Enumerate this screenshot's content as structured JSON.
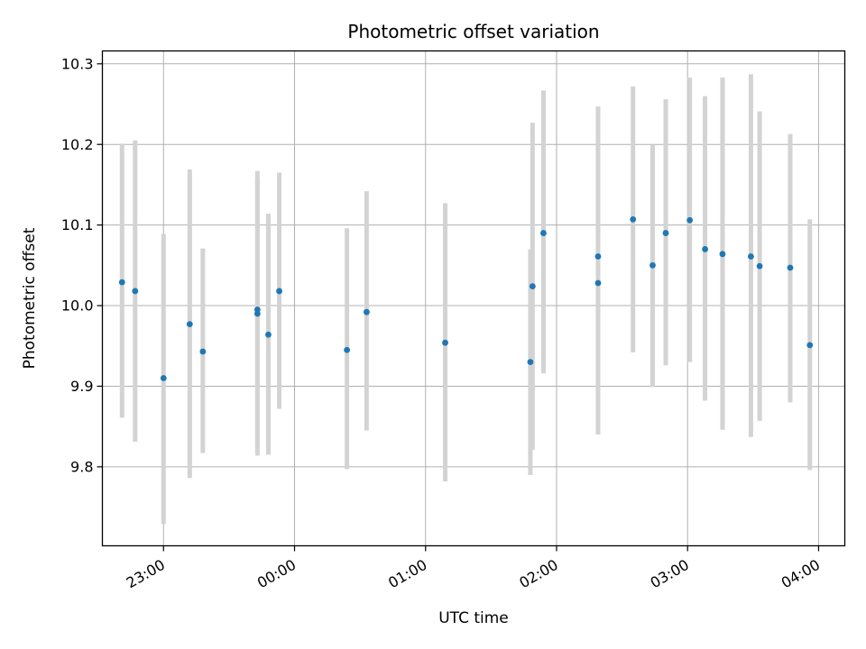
{
  "chart_data": {
    "type": "scatter",
    "title": "Photometric offset variation",
    "xlabel": "UTC time",
    "ylabel": "Photometric offset",
    "x_tick_labels": [
      "23:00",
      "00:00",
      "01:00",
      "02:00",
      "03:00",
      "04:00"
    ],
    "x_tick_times": [
      "23:00",
      "00:00",
      "01:00",
      "02:00",
      "03:00",
      "04:00"
    ],
    "y_tick_values": [
      9.8,
      9.9,
      10.0,
      10.1,
      10.2,
      10.3
    ],
    "y_tick_labels": [
      "9.8",
      "9.9",
      "10.0",
      "10.1",
      "10.2",
      "10.3"
    ],
    "xlim": [
      "22:32",
      "04:12"
    ],
    "ylim": [
      9.702,
      10.316
    ],
    "grid": true,
    "colors": {
      "point": "#1f77b4",
      "errorbar": "#d3d3d3"
    },
    "points": [
      {
        "time": "22:41",
        "y": 10.029,
        "err_low": 9.861,
        "err_high": 10.201
      },
      {
        "time": "22:47",
        "y": 10.018,
        "err_low": 9.831,
        "err_high": 10.205
      },
      {
        "time": "23:00",
        "y": 9.91,
        "err_low": 9.729,
        "err_high": 10.089
      },
      {
        "time": "23:12",
        "y": 9.977,
        "err_low": 9.786,
        "err_high": 10.169
      },
      {
        "time": "23:18",
        "y": 9.943,
        "err_low": 9.817,
        "err_high": 10.071
      },
      {
        "time": "23:43",
        "y": 9.995,
        "err_low": 9.814,
        "err_high": 10.167
      },
      {
        "time": "23:43",
        "y": 9.99,
        "err_low": 9.824,
        "err_high": 10.158
      },
      {
        "time": "23:48",
        "y": 9.964,
        "err_low": 9.815,
        "err_high": 10.114
      },
      {
        "time": "23:53",
        "y": 10.018,
        "err_low": 9.872,
        "err_high": 10.165
      },
      {
        "time": "00:24",
        "y": 9.945,
        "err_low": 9.797,
        "err_high": 10.096
      },
      {
        "time": "00:33",
        "y": 9.992,
        "err_low": 9.845,
        "err_high": 10.142
      },
      {
        "time": "01:09",
        "y": 9.954,
        "err_low": 9.782,
        "err_high": 10.127
      },
      {
        "time": "01:48",
        "y": 9.93,
        "err_low": 9.79,
        "err_high": 10.07
      },
      {
        "time": "01:49",
        "y": 10.024,
        "err_low": 9.821,
        "err_high": 10.227
      },
      {
        "time": "01:54",
        "y": 10.09,
        "err_low": 9.916,
        "err_high": 10.267
      },
      {
        "time": "02:19",
        "y": 10.028,
        "err_low": 9.878,
        "err_high": 10.218
      },
      {
        "time": "02:19",
        "y": 10.061,
        "err_low": 9.84,
        "err_high": 10.247
      },
      {
        "time": "02:35",
        "y": 10.107,
        "err_low": 9.942,
        "err_high": 10.272
      },
      {
        "time": "02:44",
        "y": 10.05,
        "err_low": 9.899,
        "err_high": 10.2
      },
      {
        "time": "02:50",
        "y": 10.09,
        "err_low": 9.926,
        "err_high": 10.256
      },
      {
        "time": "03:01",
        "y": 10.106,
        "err_low": 9.93,
        "err_high": 10.283
      },
      {
        "time": "03:08",
        "y": 10.07,
        "err_low": 9.882,
        "err_high": 10.26
      },
      {
        "time": "03:16",
        "y": 10.064,
        "err_low": 9.846,
        "err_high": 10.283
      },
      {
        "time": "03:29",
        "y": 10.061,
        "err_low": 9.837,
        "err_high": 10.287
      },
      {
        "time": "03:33",
        "y": 10.049,
        "err_low": 9.857,
        "err_high": 10.241
      },
      {
        "time": "03:47",
        "y": 10.047,
        "err_low": 9.88,
        "err_high": 10.213
      },
      {
        "time": "03:56",
        "y": 9.951,
        "err_low": 9.796,
        "err_high": 10.107
      }
    ]
  }
}
